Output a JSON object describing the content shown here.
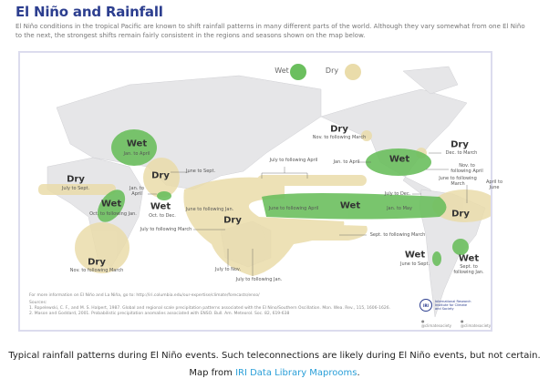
{
  "header": {
    "title": "El Niño and Rainfall",
    "intro": "El Niño conditions in the tropical Pacific are known to shift rainfall patterns in many different parts of the world. Although they vary somewhat from one El Niño to the next, the strongest shifts remain fairly consistent in the regions and seasons shown on the map below."
  },
  "legend": {
    "wet": "Wet",
    "dry": "Dry",
    "wet_color": "#6bbf5e",
    "dry_color": "#eadcaa"
  },
  "labels": [
    {
      "type": "Wet",
      "period": "Jan. to April"
    },
    {
      "type": "Dry",
      "period": "June to Sept."
    },
    {
      "type": "Dry",
      "period": "July to Sept."
    },
    {
      "type": "Wet",
      "period": "Oct. to following Jan."
    },
    {
      "type": "Wet",
      "period": "Oct. to Dec.",
      "extra": "Jan. to April"
    },
    {
      "type": "Dry",
      "period": "Nov. to following March"
    },
    {
      "type": "Dry",
      "period": "June to following Jan.",
      "extra": "July to following March",
      "extra2": "July to Nov.",
      "extra3": "July to following Jan."
    },
    {
      "type": "",
      "period": "July to following April"
    },
    {
      "type": "Wet",
      "period": "June to following April",
      "extra": "Jan. to May"
    },
    {
      "type": "",
      "period": "Sept. to following March"
    },
    {
      "type": "Dry",
      "period": "Nov. to following March"
    },
    {
      "type": "Wet",
      "period": "Jan. to April"
    },
    {
      "type": "Dry",
      "period": "Dec. to March",
      "extra": "Nov. to following April"
    },
    {
      "type": "Dry",
      "period": "June to following March",
      "extra": "April to June",
      "extra2": "July to Dec."
    },
    {
      "type": "Wet",
      "period": "June to Sept."
    },
    {
      "type": "Wet",
      "period": "Sept. to following Jan."
    }
  ],
  "footer": {
    "more_info": "For more information on El Niño and La Niña, go to: http://iri.columbia.edu/our-expertise/climate/forecasts/enso/",
    "sources_heading": "Sources:",
    "source1": "1. Ropelewski, C. F., and M. S. Halpert, 1987. Global and regional scale precipitation patterns associated with the El Nino/Southern Oscillation. Mon. Wea. Rev., 115, 1606-1626.",
    "source2": "2. Mason and Goddard, 2001. Probabilistic precipitation anomalies associated with ENSO. Bull. Am. Meteorol. Soc. 82, 619-638",
    "logo_abbr": "IRI",
    "logo_text": "International Research Institute for Climate and Society",
    "social1": "@climatesociety",
    "social2": "@climatesociety"
  },
  "caption": {
    "line1": "Typical rainfall patterns during El Niño events. Such teleconnections are likely during El Niño events, but not certain.",
    "line2_prefix": "Map from ",
    "link": "IRI Data Library Maprooms",
    "line2_suffix": "."
  }
}
